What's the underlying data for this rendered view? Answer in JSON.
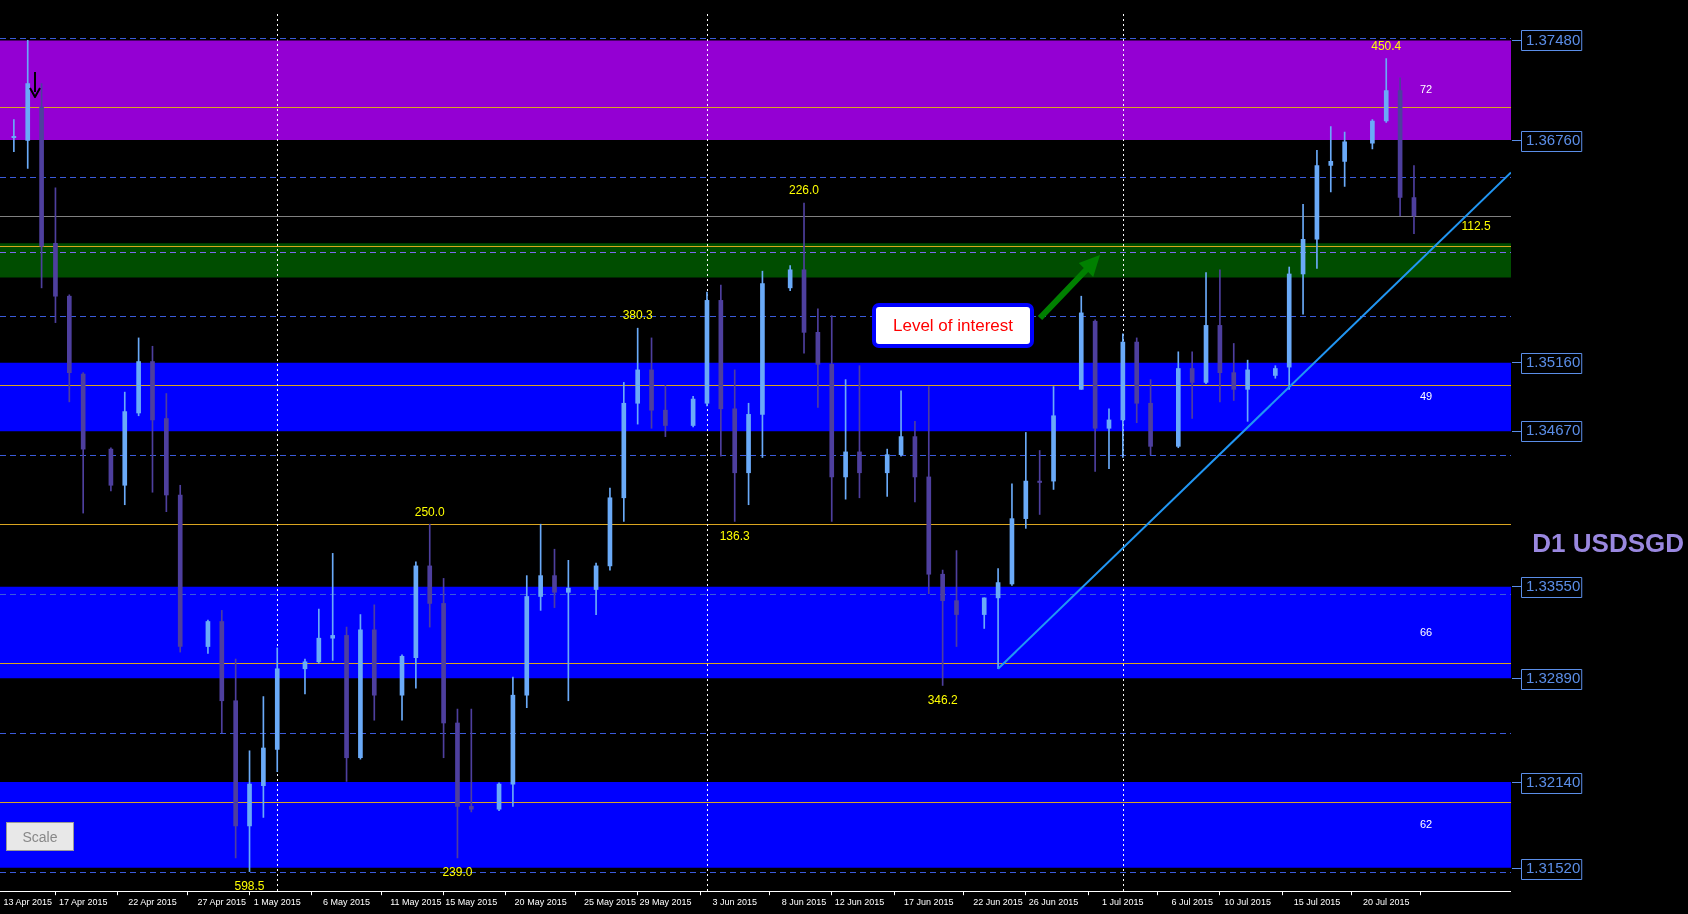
{
  "chart_data": {
    "type": "candlestick",
    "title": "D1 USDSGD",
    "x": [
      "2015-04-12",
      "2015-04-13",
      "2015-04-14",
      "2015-04-15",
      "2015-04-16",
      "2015-04-17",
      "2015-04-19",
      "2015-04-20",
      "2015-04-21",
      "2015-04-22",
      "2015-04-23",
      "2015-04-24",
      "2015-04-26",
      "2015-04-27",
      "2015-04-28",
      "2015-04-29",
      "2015-04-30",
      "2015-05-01",
      "2015-05-03",
      "2015-05-04",
      "2015-05-05",
      "2015-05-06",
      "2015-05-07",
      "2015-05-08",
      "2015-05-10",
      "2015-05-11",
      "2015-05-12",
      "2015-05-13",
      "2015-05-14",
      "2015-05-15",
      "2015-05-17",
      "2015-05-18",
      "2015-05-19",
      "2015-05-20",
      "2015-05-21",
      "2015-05-22",
      "2015-05-24",
      "2015-05-25",
      "2015-05-26",
      "2015-05-27",
      "2015-05-28",
      "2015-05-29",
      "2015-05-31",
      "2015-06-01",
      "2015-06-02",
      "2015-06-03",
      "2015-06-04",
      "2015-06-05",
      "2015-06-07",
      "2015-06-08",
      "2015-06-09",
      "2015-06-10",
      "2015-06-11",
      "2015-06-12",
      "2015-06-14",
      "2015-06-15",
      "2015-06-16",
      "2015-06-17",
      "2015-06-18",
      "2015-06-19",
      "2015-06-21",
      "2015-06-22",
      "2015-06-23",
      "2015-06-24",
      "2015-06-25",
      "2015-06-26",
      "2015-06-28",
      "2015-06-29",
      "2015-06-30",
      "2015-07-01",
      "2015-07-02",
      "2015-07-03",
      "2015-07-05",
      "2015-07-06",
      "2015-07-07",
      "2015-07-08",
      "2015-07-09",
      "2015-07-10",
      "2015-07-12",
      "2015-07-13",
      "2015-07-14",
      "2015-07-15",
      "2015-07-16",
      "2015-07-17",
      "2015-07-19",
      "2015-07-20",
      "2015-07-21",
      "2015-07-22"
    ],
    "ohlc": [
      [
        1.3678,
        1.3691,
        1.3668,
        1.3679
      ],
      [
        1.3676,
        1.3748,
        1.3656,
        1.3717
      ],
      [
        1.37,
        1.3717,
        1.357,
        1.36
      ],
      [
        1.3602,
        1.3642,
        1.3545,
        1.3564
      ],
      [
        1.3564,
        1.3565,
        1.3488,
        1.3509
      ],
      [
        1.3508,
        1.3509,
        1.3408,
        1.3454
      ],
      [
        1.3454,
        1.3455,
        1.3424,
        1.3428
      ],
      [
        1.3428,
        1.3495,
        1.3414,
        1.3481
      ],
      [
        1.348,
        1.3534,
        1.3478,
        1.3517
      ],
      [
        1.3517,
        1.3528,
        1.3423,
        1.3475
      ],
      [
        1.3476,
        1.3494,
        1.3409,
        1.3421
      ],
      [
        1.3421,
        1.3428,
        1.3308,
        1.3312
      ],
      [
        1.3312,
        1.3331,
        1.3307,
        1.333
      ],
      [
        1.333,
        1.3338,
        1.325,
        1.3273
      ],
      [
        1.3273,
        1.3303,
        1.316,
        1.3183
      ],
      [
        1.3183,
        1.3237,
        1.315,
        1.3213
      ],
      [
        1.3212,
        1.3276,
        1.3189,
        1.3239
      ],
      [
        1.3238,
        1.3311,
        1.3222,
        1.3296
      ],
      [
        1.3296,
        1.3303,
        1.3278,
        1.3301
      ],
      [
        1.3301,
        1.3339,
        1.33,
        1.3318
      ],
      [
        1.3318,
        1.3379,
        1.3302,
        1.332
      ],
      [
        1.332,
        1.3326,
        1.3215,
        1.3232
      ],
      [
        1.3232,
        1.3335,
        1.3231,
        1.3324
      ],
      [
        1.3324,
        1.3342,
        1.3259,
        1.3277
      ],
      [
        1.3277,
        1.3306,
        1.3259,
        1.3305
      ],
      [
        1.3304,
        1.3373,
        1.3282,
        1.337
      ],
      [
        1.337,
        1.34,
        1.3326,
        1.3343
      ],
      [
        1.3343,
        1.3361,
        1.3232,
        1.3257
      ],
      [
        1.3257,
        1.3267,
        1.316,
        1.3197
      ],
      [
        1.3197,
        1.3267,
        1.3193,
        1.3195
      ],
      [
        1.3195,
        1.3214,
        1.3194,
        1.3213
      ],
      [
        1.3213,
        1.329,
        1.3197,
        1.3277
      ],
      [
        1.3277,
        1.3363,
        1.3268,
        1.3348
      ],
      [
        1.3348,
        1.34,
        1.3338,
        1.3363
      ],
      [
        1.3363,
        1.3382,
        1.334,
        1.3351
      ],
      [
        1.3351,
        1.3374,
        1.3273,
        1.3354
      ],
      [
        1.3353,
        1.3372,
        1.3335,
        1.337
      ],
      [
        1.337,
        1.3426,
        1.3367,
        1.3419
      ],
      [
        1.3419,
        1.3502,
        1.3402,
        1.3487
      ],
      [
        1.3487,
        1.3541,
        1.3472,
        1.3511
      ],
      [
        1.3511,
        1.3534,
        1.3469,
        1.3482
      ],
      [
        1.3482,
        1.35,
        1.3463,
        1.3471
      ],
      [
        1.3471,
        1.3492,
        1.347,
        1.349
      ],
      [
        1.3487,
        1.3567,
        1.3485,
        1.3561
      ],
      [
        1.3561,
        1.3572,
        1.3449,
        1.3483
      ],
      [
        1.3483,
        1.3511,
        1.3402,
        1.3437
      ],
      [
        1.3437,
        1.3487,
        1.3414,
        1.3479
      ],
      [
        1.3479,
        1.3582,
        1.3448,
        1.3573
      ],
      [
        1.357,
        1.3586,
        1.3568,
        1.3583
      ],
      [
        1.3583,
        1.3631,
        1.3523,
        1.3538
      ],
      [
        1.3538,
        1.3555,
        1.3484,
        1.3515
      ],
      [
        1.3515,
        1.355,
        1.3402,
        1.3434
      ],
      [
        1.3434,
        1.3504,
        1.3418,
        1.3452
      ],
      [
        1.3452,
        1.3514,
        1.3419,
        1.3437
      ],
      [
        1.3437,
        1.3454,
        1.342,
        1.345
      ],
      [
        1.345,
        1.3496,
        1.3449,
        1.3463
      ],
      [
        1.3463,
        1.3474,
        1.3416,
        1.3434
      ],
      [
        1.3434,
        1.3499,
        1.335,
        1.3364
      ],
      [
        1.3364,
        1.3367,
        1.3284,
        1.3345
      ],
      [
        1.3345,
        1.3381,
        1.3312,
        1.3335
      ],
      [
        1.3335,
        1.3347,
        1.3325,
        1.3347
      ],
      [
        1.3347,
        1.3368,
        1.3296,
        1.3358
      ],
      [
        1.3357,
        1.3429,
        1.3356,
        1.3404
      ],
      [
        1.3404,
        1.3466,
        1.3397,
        1.3431
      ],
      [
        1.3431,
        1.3453,
        1.3407,
        1.343
      ],
      [
        1.3431,
        1.3499,
        1.3425,
        1.3478
      ],
      [
        1.3497,
        1.3564,
        1.3497,
        1.3552
      ],
      [
        1.3546,
        1.3547,
        1.3438,
        1.3469
      ],
      [
        1.3469,
        1.3483,
        1.344,
        1.3475
      ],
      [
        1.3475,
        1.3537,
        1.3448,
        1.3531
      ],
      [
        1.3531,
        1.3534,
        1.3473,
        1.3487
      ],
      [
        1.3487,
        1.3504,
        1.345,
        1.3456
      ],
      [
        1.3456,
        1.3524,
        1.3455,
        1.3512
      ],
      [
        1.3512,
        1.3524,
        1.3476,
        1.3502
      ],
      [
        1.3502,
        1.3581,
        1.3501,
        1.3543
      ],
      [
        1.3543,
        1.3583,
        1.3488,
        1.3509
      ],
      [
        1.3509,
        1.353,
        1.3489,
        1.3497
      ],
      [
        1.3497,
        1.3518,
        1.3474,
        1.3511
      ],
      [
        1.3507,
        1.3514,
        1.3505,
        1.3512
      ],
      [
        1.3513,
        1.3585,
        1.3497,
        1.358
      ],
      [
        1.358,
        1.363,
        1.3551,
        1.3605
      ],
      [
        1.3605,
        1.3669,
        1.3584,
        1.3658
      ],
      [
        1.3658,
        1.3686,
        1.3639,
        1.3661
      ],
      [
        1.3661,
        1.3682,
        1.3643,
        1.3675
      ],
      [
        1.3674,
        1.3691,
        1.367,
        1.369
      ],
      [
        1.369,
        1.3735,
        1.3689,
        1.3712
      ],
      [
        1.3712,
        1.3721,
        1.3622,
        1.3635
      ],
      [
        1.3635,
        1.3658,
        1.3609,
        1.3622
      ]
    ],
    "colors": [
      "#6aaaf8",
      "#6aaaf8",
      "#4e3f9e",
      "#4e3f9e",
      "#4e3f9e",
      "#4e3f9e",
      "#4e3f9e",
      "#6aaaf8",
      "#6aaaf8",
      "#4e3f9e",
      "#4e3f9e",
      "#4e3f9e",
      "#6aaaf8",
      "#4e3f9e",
      "#4e3f9e",
      "#6aaaf8",
      "#6aaaf8",
      "#6aaaf8",
      "#6aaaf8",
      "#6aaaf8",
      "#6aaaf8",
      "#4e3f9e",
      "#6aaaf8",
      "#4e3f9e",
      "#6aaaf8",
      "#6aaaf8",
      "#4e3f9e",
      "#4e3f9e",
      "#4e3f9e",
      "#4e3f9e",
      "#6aaaf8",
      "#6aaaf8",
      "#6aaaf8",
      "#6aaaf8",
      "#4e3f9e",
      "#6aaaf8",
      "#6aaaf8",
      "#6aaaf8",
      "#6aaaf8",
      "#6aaaf8",
      "#4e3f9e",
      "#4e3f9e",
      "#6aaaf8",
      "#6aaaf8",
      "#4e3f9e",
      "#4e3f9e",
      "#6aaaf8",
      "#6aaaf8",
      "#6aaaf8",
      "#4e3f9e",
      "#4e3f9e",
      "#4e3f9e",
      "#6aaaf8",
      "#4e3f9e",
      "#6aaaf8",
      "#6aaaf8",
      "#4e3f9e",
      "#4e3f9e",
      "#4e3f9e",
      "#4e3f9e",
      "#6aaaf8",
      "#6aaaf8",
      "#6aaaf8",
      "#6aaaf8",
      "#4e3f9e",
      "#6aaaf8",
      "#6aaaf8",
      "#4e3f9e",
      "#6aaaf8",
      "#6aaaf8",
      "#4e3f9e",
      "#4e3f9e",
      "#6aaaf8",
      "#4e3f9e",
      "#6aaaf8",
      "#4e3f9e",
      "#4e3f9e",
      "#6aaaf8",
      "#6aaaf8",
      "#6aaaf8",
      "#6aaaf8",
      "#6aaaf8",
      "#6aaaf8",
      "#6aaaf8",
      "#6aaaf8",
      "#6aaaf8",
      "#4e3f9e",
      "#4e3f9e"
    ],
    "series": [
      {
        "type": "line",
        "x": [
          "2015-06-22",
          "2015-07-29"
        ],
        "values": [
          1.3296,
          1.3653
        ],
        "color": "#2196f3"
      }
    ],
    "xlim": [
      "2015-04-11",
      "2015-07-29"
    ],
    "xticks": [
      {
        "value": "2015-04-13",
        "label": "13 Apr 2015"
      },
      {
        "value": "2015-04-17",
        "label": "17 Apr 2015"
      },
      {
        "value": "2015-04-22",
        "label": "22 Apr 2015"
      },
      {
        "value": "2015-04-27",
        "label": "27 Apr 2015"
      },
      {
        "value": "2015-05-01",
        "label": "1 May 2015"
      },
      {
        "value": "2015-05-06",
        "label": "6 May 2015"
      },
      {
        "value": "2015-05-11",
        "label": "11 May 2015"
      },
      {
        "value": "2015-05-15",
        "label": "15 May 2015"
      },
      {
        "value": "2015-05-20",
        "label": "20 May 2015"
      },
      {
        "value": "2015-05-25",
        "label": "25 May 2015"
      },
      {
        "value": "2015-05-29",
        "label": "29 May 2015"
      },
      {
        "value": "2015-06-03",
        "label": "3 Jun 2015"
      },
      {
        "value": "2015-06-08",
        "label": "8 Jun 2015"
      },
      {
        "value": "2015-06-12",
        "label": "12 Jun 2015"
      },
      {
        "value": "2015-06-17",
        "label": "17 Jun 2015"
      },
      {
        "value": "2015-06-22",
        "label": "22 Jun 2015"
      },
      {
        "value": "2015-06-26",
        "label": "26 Jun 2015"
      },
      {
        "value": "2015-07-01",
        "label": "1 Jul 2015"
      },
      {
        "value": "2015-07-06",
        "label": "6 Jul 2015"
      },
      {
        "value": "2015-07-10",
        "label": "10 Jul 2015"
      },
      {
        "value": "2015-07-15",
        "label": "15 Jul 2015"
      },
      {
        "value": "2015-07-20",
        "label": "20 Jul 2015"
      }
    ],
    "ylim": [
      1.3136,
      1.3767
    ],
    "yticks": [
      {
        "value": 1.3748,
        "label": "1.37480"
      },
      {
        "value": 1.3676,
        "label": "1.36760"
      },
      {
        "value": 1.3516,
        "label": "1.35160"
      },
      {
        "value": 1.3467,
        "label": "1.34670"
      },
      {
        "value": 1.3355,
        "label": "1.33550"
      },
      {
        "value": 1.3289,
        "label": "1.32890"
      },
      {
        "value": 1.3214,
        "label": "1.32140"
      },
      {
        "value": 1.3152,
        "label": "1.31520"
      }
    ],
    "bands": [
      {
        "axis": "y",
        "from": 1.36764,
        "to": 1.3748,
        "label": "72",
        "color": "#9400d3"
      },
      {
        "axis": "y",
        "from": 1.35775,
        "to": 1.36021,
        "color": "#004d00"
      },
      {
        "axis": "y",
        "from": 1.34669,
        "to": 1.35162,
        "label": "49",
        "color": "#0000ff"
      },
      {
        "axis": "y",
        "from": 1.32892,
        "to": 1.3355,
        "label": "66",
        "color": "#0000ff"
      },
      {
        "axis": "y",
        "from": 1.31528,
        "to": 1.32145,
        "label": "62",
        "color": "#0000ff"
      }
    ],
    "ref_lines": [
      {
        "axis": "y",
        "value": 1.37,
        "color": "#daa520",
        "line_style": "solid"
      },
      {
        "axis": "y",
        "value": 1.36,
        "color": "#daa520",
        "line_style": "solid"
      },
      {
        "axis": "y",
        "value": 1.35,
        "color": "#daa520",
        "line_style": "solid"
      },
      {
        "axis": "y",
        "value": 1.34,
        "color": "#daa520",
        "line_style": "solid"
      },
      {
        "axis": "y",
        "value": 1.33,
        "color": "#daa520",
        "line_style": "solid"
      },
      {
        "axis": "y",
        "value": 1.32,
        "color": "#daa520",
        "line_style": "solid"
      },
      {
        "axis": "y",
        "value": 1.375,
        "color": "#3b5bdb",
        "line_style": "dashed"
      },
      {
        "axis": "y",
        "value": 1.365,
        "color": "#3b5bdb",
        "line_style": "dashed"
      },
      {
        "axis": "y",
        "value": 1.355,
        "color": "#3b5bdb",
        "line_style": "dashed"
      },
      {
        "axis": "y",
        "value": 1.345,
        "color": "#3b5bdb",
        "line_style": "dashed"
      },
      {
        "axis": "y",
        "value": 1.335,
        "color": "#3b5bdb",
        "line_style": "dashed"
      },
      {
        "axis": "y",
        "value": 1.325,
        "color": "#3b5bdb",
        "line_style": "dashed"
      },
      {
        "axis": "y",
        "value": 1.315,
        "color": "#3b5bdb",
        "line_style": "dashed"
      },
      {
        "axis": "y",
        "value": 1.3622,
        "color": "#808080",
        "line_style": "solid"
      },
      {
        "axis": "y",
        "value": 1.3596,
        "color": "#7b68ee",
        "line_style": "dashed"
      },
      {
        "axis": "x",
        "value": "2015-05-01",
        "color": "#ffffff",
        "line_style": "dotted"
      },
      {
        "axis": "x",
        "value": "2015-06-01",
        "color": "#ffffff",
        "line_style": "dotted"
      },
      {
        "axis": "x",
        "value": "2015-07-01",
        "color": "#ffffff",
        "line_style": "dotted"
      }
    ],
    "annotations": [
      "Level of interest",
      "Scale",
      {
        "text": "450.4",
        "x": "2015-07-20",
        "y": 1.3735
      },
      {
        "text": "226.0",
        "x": "2015-06-08",
        "y": 1.3631
      },
      {
        "text": "380.3",
        "x": "2015-05-27",
        "y": 1.3541
      },
      {
        "text": "250.0",
        "x": "2015-05-12",
        "y": 1.34
      },
      {
        "text": "136.3",
        "x": "2015-06-03",
        "y": 1.3402
      },
      {
        "text": "346.2",
        "x": "2015-06-18",
        "y": 1.3284
      },
      {
        "text": "598.5",
        "x": "2015-04-29",
        "y": 1.315
      },
      {
        "text": "239.0",
        "x": "2015-05-14",
        "y": 1.316
      },
      {
        "text": "112.5",
        "y": 1.3622
      }
    ]
  }
}
